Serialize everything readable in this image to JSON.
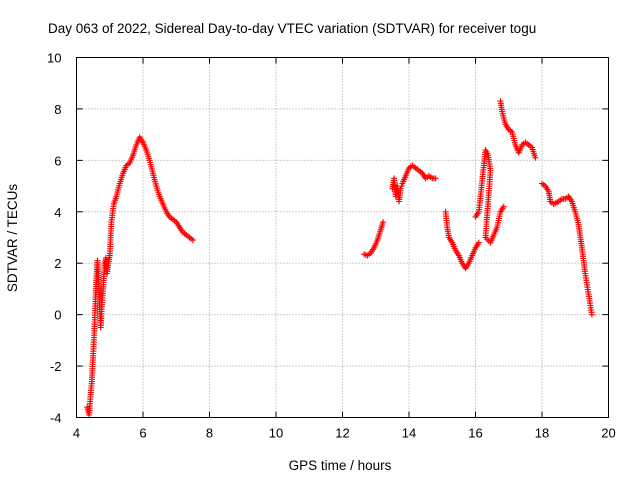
{
  "chart_data": {
    "type": "scatter",
    "title": "Day 063 of 2022, Sidereal Day-to-day VTEC variation (SDTVAR) for receiver togu",
    "xlabel": "GPS time / hours",
    "ylabel": "SDTVAR / TECUs",
    "xlim": [
      4,
      20
    ],
    "ylim": [
      -4,
      10
    ],
    "xticks": [
      4,
      6,
      8,
      10,
      12,
      14,
      16,
      18,
      20
    ],
    "yticks": [
      -4,
      -2,
      0,
      2,
      4,
      6,
      8,
      10
    ],
    "xtick_labels": [
      "4",
      "6",
      "8",
      "10",
      "12",
      "14",
      "16",
      "18",
      "20"
    ],
    "ytick_labels": [
      "-4",
      "-2",
      "0",
      "2",
      "4",
      "6",
      "8",
      "10"
    ],
    "grid": true,
    "marker": "+",
    "color": "#ff0000",
    "series": [
      {
        "name": "SDTVAR",
        "segments": [
          [
            [
              4.32,
              -3.6
            ],
            [
              4.38,
              -3.9
            ],
            [
              4.42,
              -3.2
            ],
            [
              4.46,
              -2.6
            ],
            [
              4.5,
              -1.6
            ],
            [
              4.53,
              -0.8
            ],
            [
              4.55,
              -0.2
            ],
            [
              4.57,
              0.6
            ],
            [
              4.6,
              1.5
            ],
            [
              4.63,
              2.1
            ],
            [
              4.67,
              1.2
            ],
            [
              4.7,
              0.2
            ],
            [
              4.73,
              -0.5
            ],
            [
              4.76,
              0.3
            ],
            [
              4.8,
              1.0
            ],
            [
              4.84,
              1.9
            ],
            [
              4.88,
              2.2
            ],
            [
              4.92,
              1.6
            ],
            [
              4.96,
              2.0
            ],
            [
              5.0,
              2.3
            ],
            [
              5.05,
              3.6
            ],
            [
              5.12,
              4.3
            ],
            [
              5.2,
              4.6
            ],
            [
              5.3,
              5.1
            ],
            [
              5.4,
              5.5
            ],
            [
              5.5,
              5.8
            ],
            [
              5.6,
              5.9
            ],
            [
              5.7,
              6.2
            ],
            [
              5.8,
              6.6
            ],
            [
              5.9,
              6.9
            ],
            [
              6.0,
              6.7
            ],
            [
              6.1,
              6.4
            ],
            [
              6.2,
              6.0
            ],
            [
              6.3,
              5.5
            ],
            [
              6.4,
              5.0
            ],
            [
              6.5,
              4.6
            ],
            [
              6.6,
              4.3
            ],
            [
              6.7,
              4.0
            ],
            [
              6.8,
              3.8
            ],
            [
              6.9,
              3.7
            ],
            [
              7.0,
              3.6
            ],
            [
              7.1,
              3.4
            ],
            [
              7.2,
              3.2
            ],
            [
              7.3,
              3.1
            ],
            [
              7.4,
              3.0
            ],
            [
              7.5,
              2.9
            ]
          ],
          [
            [
              12.65,
              2.35
            ],
            [
              12.75,
              2.3
            ],
            [
              12.85,
              2.4
            ],
            [
              12.95,
              2.6
            ],
            [
              13.05,
              2.9
            ],
            [
              13.15,
              3.3
            ],
            [
              13.22,
              3.6
            ]
          ],
          [
            [
              13.5,
              4.9
            ],
            [
              13.55,
              5.3
            ],
            [
              13.6,
              4.6
            ],
            [
              13.65,
              5.0
            ],
            [
              13.7,
              4.4
            ],
            [
              13.75,
              4.9
            ],
            [
              13.8,
              5.1
            ],
            [
              13.9,
              5.4
            ],
            [
              14.0,
              5.7
            ],
            [
              14.1,
              5.8
            ],
            [
              14.2,
              5.7
            ],
            [
              14.3,
              5.6
            ],
            [
              14.4,
              5.5
            ],
            [
              14.5,
              5.3
            ],
            [
              14.6,
              5.4
            ],
            [
              14.7,
              5.3
            ],
            [
              14.8,
              5.3
            ]
          ],
          [
            [
              15.1,
              4.0
            ],
            [
              15.15,
              3.4
            ],
            [
              15.2,
              3.0
            ],
            [
              15.3,
              2.8
            ],
            [
              15.4,
              2.5
            ],
            [
              15.5,
              2.3
            ],
            [
              15.6,
              2.0
            ],
            [
              15.7,
              1.8
            ],
            [
              15.8,
              2.0
            ],
            [
              15.9,
              2.3
            ],
            [
              16.0,
              2.6
            ],
            [
              16.1,
              2.8
            ]
          ],
          [
            [
              16.0,
              3.8
            ],
            [
              16.1,
              4.0
            ],
            [
              16.3,
              6.4
            ],
            [
              16.38,
              6.2
            ],
            [
              16.45,
              5.6
            ],
            [
              16.3,
              3.0
            ],
            [
              16.45,
              2.8
            ],
            [
              16.65,
              3.4
            ],
            [
              16.75,
              4.0
            ],
            [
              16.85,
              4.2
            ]
          ],
          [
            [
              16.75,
              8.3
            ],
            [
              16.8,
              7.9
            ],
            [
              16.9,
              7.4
            ],
            [
              17.0,
              7.2
            ],
            [
              17.1,
              7.1
            ],
            [
              17.2,
              6.6
            ],
            [
              17.3,
              6.3
            ],
            [
              17.4,
              6.6
            ],
            [
              17.5,
              6.7
            ],
            [
              17.6,
              6.6
            ],
            [
              17.7,
              6.5
            ],
            [
              17.8,
              6.1
            ]
          ],
          [
            [
              18.0,
              5.1
            ],
            [
              18.1,
              5.0
            ],
            [
              18.2,
              4.8
            ],
            [
              18.25,
              4.4
            ],
            [
              18.35,
              4.3
            ],
            [
              18.5,
              4.4
            ],
            [
              18.6,
              4.5
            ],
            [
              18.7,
              4.5
            ],
            [
              18.8,
              4.6
            ],
            [
              18.9,
              4.4
            ],
            [
              19.0,
              4.0
            ],
            [
              19.1,
              3.5
            ],
            [
              19.2,
              2.6
            ],
            [
              19.3,
              1.6
            ],
            [
              19.4,
              0.8
            ],
            [
              19.5,
              0.0
            ]
          ]
        ]
      }
    ]
  }
}
